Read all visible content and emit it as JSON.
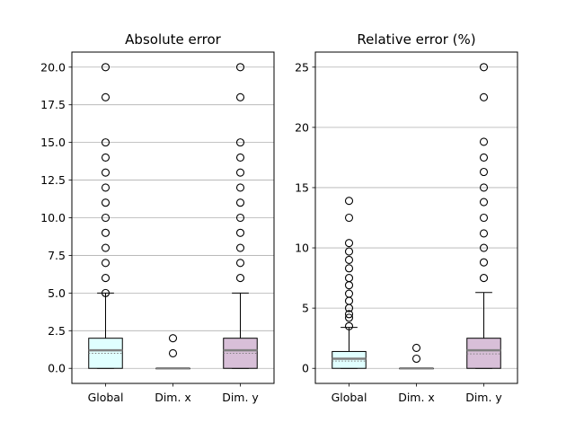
{
  "chart_data": [
    {
      "type": "box",
      "title": "Absolute error",
      "xlabel": "",
      "ylabel": "",
      "ylim": [
        -1.0,
        21.0
      ],
      "yticks": [
        0.0,
        2.5,
        5.0,
        7.5,
        10.0,
        12.5,
        15.0,
        17.5,
        20.0
      ],
      "ytick_labels": [
        "0.0",
        "2.5",
        "5.0",
        "7.5",
        "10.0",
        "12.5",
        "15.0",
        "17.5",
        "20.0"
      ],
      "grid": "horizontal",
      "categories": [
        "Global",
        "Dim. x",
        "Dim. y"
      ],
      "boxes": [
        {
          "label": "Global",
          "whisker_low": 0,
          "q1": 0,
          "median": 1.2,
          "mean": 1.0,
          "q3": 2,
          "whisker_high": 5,
          "fliers": [
            5,
            6,
            7,
            8,
            9,
            10,
            11,
            12,
            13,
            14,
            15,
            18,
            20
          ],
          "color": "#e0ffff"
        },
        {
          "label": "Dim. x",
          "whisker_low": 0,
          "q1": 0,
          "median": 0,
          "mean": 0,
          "q3": 0,
          "whisker_high": 0,
          "fliers": [
            1,
            2
          ],
          "color": "#ffffff"
        },
        {
          "label": "Dim. y",
          "whisker_low": 0,
          "q1": 0,
          "median": 1.2,
          "mean": 1.0,
          "q3": 2,
          "whisker_high": 5,
          "fliers": [
            6,
            7,
            8,
            9,
            10,
            11,
            12,
            13,
            14,
            15,
            18,
            20
          ],
          "color": "#d8bfd8"
        }
      ]
    },
    {
      "type": "box",
      "title": "Relative error (%)",
      "xlabel": "",
      "ylabel": "",
      "ylim": [
        -1.25,
        26.25
      ],
      "yticks": [
        0,
        5,
        10,
        15,
        20,
        25
      ],
      "ytick_labels": [
        "0",
        "5",
        "10",
        "15",
        "20",
        "25"
      ],
      "grid": "horizontal",
      "categories": [
        "Global",
        "Dim. x",
        "Dim. y"
      ],
      "boxes": [
        {
          "label": "Global",
          "whisker_low": 0,
          "q1": 0,
          "median": 0.8,
          "mean": 0.6,
          "q3": 1.4,
          "whisker_high": 3.4,
          "fliers": [
            3.5,
            4.2,
            4.5,
            5.0,
            5.6,
            6.2,
            6.9,
            7.5,
            8.3,
            9.0,
            9.7,
            10.4,
            12.5,
            13.9
          ],
          "color": "#e0ffff"
        },
        {
          "label": "Dim. x",
          "whisker_low": 0,
          "q1": 0,
          "median": 0,
          "mean": 0,
          "q3": 0,
          "whisker_high": 0,
          "fliers": [
            0.8,
            1.7
          ],
          "color": "#ffffff"
        },
        {
          "label": "Dim. y",
          "whisker_low": 0,
          "q1": 0,
          "median": 1.5,
          "mean": 1.2,
          "q3": 2.5,
          "whisker_high": 6.3,
          "fliers": [
            7.5,
            8.8,
            10.0,
            11.2,
            12.5,
            13.8,
            15.0,
            16.3,
            17.5,
            18.8,
            22.5,
            25.0
          ],
          "color": "#d8bfd8"
        }
      ]
    }
  ]
}
